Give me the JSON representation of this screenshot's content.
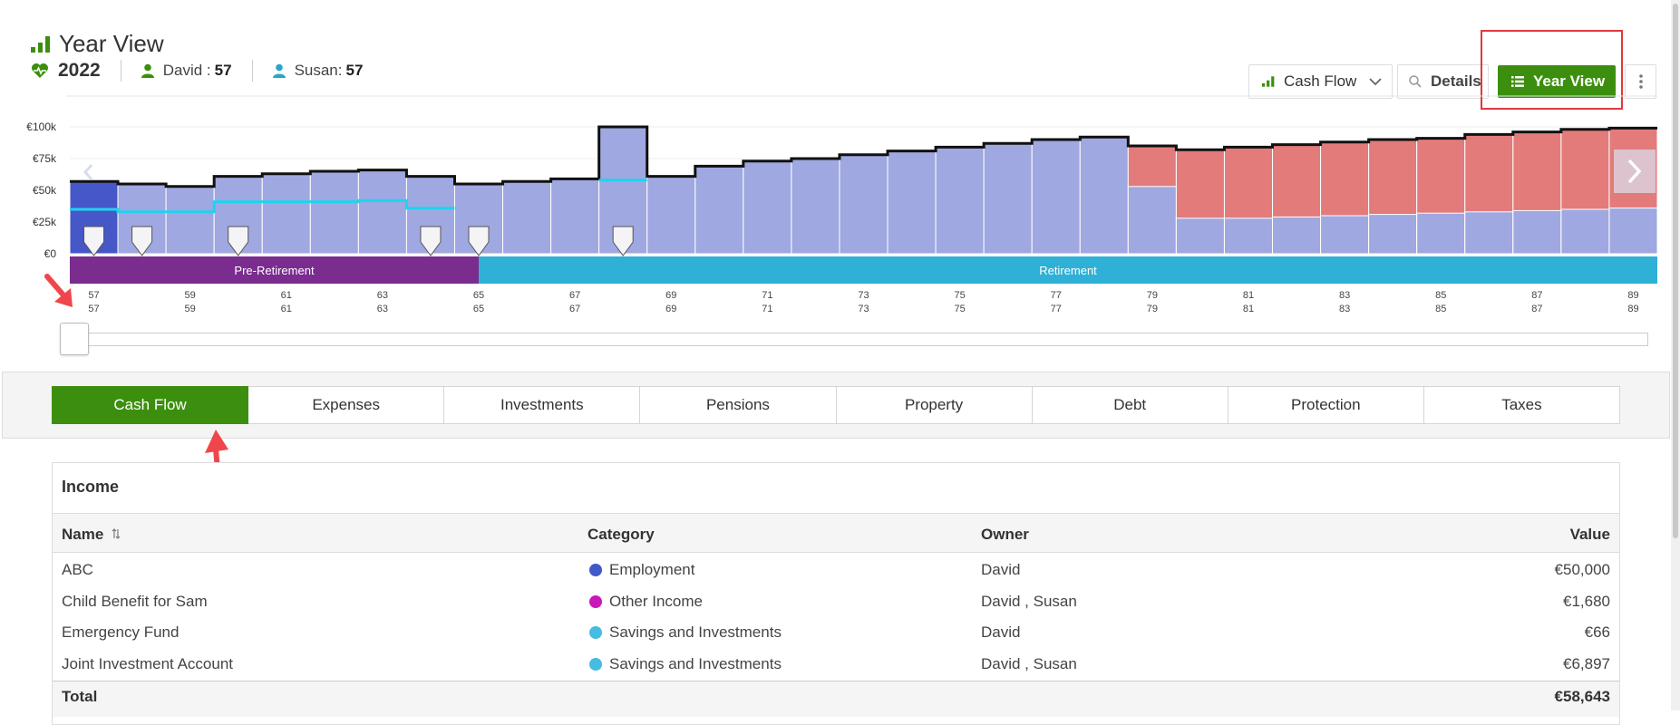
{
  "header": {
    "title": "Year View",
    "year": "2022",
    "people": [
      {
        "name": "David :",
        "age": "57",
        "color": "#3c8f0e"
      },
      {
        "name": "Susan:",
        "age": "57",
        "color": "#2aa5c9"
      }
    ]
  },
  "toolbar": {
    "cashflow_label": "Cash Flow",
    "details_label": "Details",
    "yearview_label": "Year View"
  },
  "chart_data": {
    "type": "bar",
    "y_ticks": [
      "€100k",
      "€75k",
      "€50k",
      "€25k",
      "€0"
    ],
    "ylim": [
      0,
      100000
    ],
    "ages_david": [
      "57",
      "59",
      "61",
      "63",
      "65",
      "67",
      "69",
      "71",
      "73",
      "75",
      "77",
      "79",
      "81",
      "83",
      "85",
      "87",
      "89"
    ],
    "ages_susan": [
      "57",
      "59",
      "61",
      "63",
      "65",
      "67",
      "69",
      "71",
      "73",
      "75",
      "77",
      "79",
      "81",
      "83",
      "85",
      "87",
      "89"
    ],
    "total_cashflow": [
      57000,
      55000,
      53000,
      61000,
      63000,
      65000,
      66000,
      61000,
      55000,
      57000,
      59000,
      100000,
      61000,
      69000,
      73000,
      75000,
      78000,
      81000,
      84000,
      87000,
      90000,
      92000,
      85000,
      82000,
      84000,
      86000,
      88000,
      90000,
      91000,
      94000,
      96000,
      98000,
      99000
    ],
    "expense_line": [
      35000,
      33000,
      33000,
      41000,
      41000,
      41000,
      42000,
      36000,
      0,
      0,
      0,
      58000
    ],
    "shortfall_series": {
      "name": "shortfall",
      "color": "#e37b7b",
      "start_index": 22,
      "covered": [
        53000,
        28000,
        28000,
        29000,
        30000,
        31000,
        32000,
        33000,
        34000,
        35000,
        36000
      ]
    },
    "event_markers": [
      0,
      1,
      3,
      7,
      8,
      11
    ],
    "colors": {
      "base": "#9fa8e0",
      "highlight": "#4657c8",
      "line": "#1fd3f0",
      "outline": "#111111"
    },
    "phases": [
      {
        "label": "Pre-Retirement",
        "color": "#7b2c8f",
        "start": 0,
        "end": 8.5
      },
      {
        "label": "Retirement",
        "color": "#2fb0d6",
        "start": 8.5,
        "end": 33
      }
    ]
  },
  "tabs": [
    "Cash Flow",
    "Expenses",
    "Investments",
    "Pensions",
    "Property",
    "Debt",
    "Protection",
    "Taxes"
  ],
  "income": {
    "title": "Income",
    "columns": {
      "name": "Name",
      "category": "Category",
      "owner": "Owner",
      "value": "Value"
    },
    "rows": [
      {
        "name": "ABC",
        "category": "Employment",
        "dot": "#4158c9",
        "owner": "David",
        "value": "€50,000"
      },
      {
        "name": "Child Benefit for Sam",
        "category": "Other Income",
        "dot": "#c918b8",
        "owner": "David , Susan",
        "value": "€1,680"
      },
      {
        "name": "Emergency Fund",
        "category": "Savings and Investments",
        "dot": "#44bde0",
        "owner": "David",
        "value": "€66"
      },
      {
        "name": "Joint Investment Account",
        "category": "Savings and Investments",
        "dot": "#44bde0",
        "owner": "David , Susan",
        "value": "€6,897"
      }
    ],
    "total_label": "Total",
    "total_value": "€58,643"
  }
}
